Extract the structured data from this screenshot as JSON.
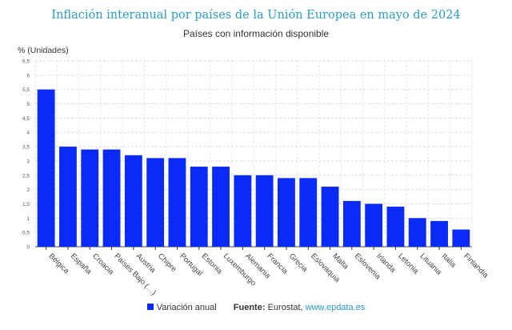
{
  "chart_data": {
    "type": "bar",
    "title": "Inflación interanual por países de la Unión Europea en mayo de 2024",
    "subtitle": "Países con información disponible",
    "ylabel": "% (Unidades)",
    "xlabel": "",
    "ylim": [
      0,
      6.5
    ],
    "ytick_step": 0.5,
    "yticks": [
      "0",
      "0,5",
      "1",
      "1,5",
      "2",
      "2,5",
      "3",
      "3,5",
      "4",
      "4,5",
      "5",
      "5,5",
      "6",
      "6,5"
    ],
    "grid": true,
    "legend_position": "bottom",
    "bar_color": "#0a2bf5",
    "categories": [
      "Bélgica",
      "España",
      "Croacia",
      "Países Bajo (…)",
      "Austria",
      "Chipre",
      "Portugal",
      "Estonia",
      "Luxemburgo",
      "Alemania",
      "Francia",
      "Grecia",
      "Eslovaquia",
      "Malta",
      "Eslovenia",
      "Irlanda",
      "Letonia",
      "Lituania",
      "Italia",
      "Finlandia"
    ],
    "series": [
      {
        "name": "Variación anual",
        "values": [
          5.5,
          3.5,
          3.4,
          3.4,
          3.2,
          3.1,
          3.1,
          2.8,
          2.8,
          2.5,
          2.5,
          2.4,
          2.4,
          2.1,
          1.6,
          1.5,
          1.4,
          1.0,
          0.9,
          0.6
        ]
      }
    ]
  },
  "legend": {
    "label": "Variación anual",
    "source_label": "Fuente:",
    "source_name": "Eurostat,",
    "source_link": "www.epdata.es"
  }
}
